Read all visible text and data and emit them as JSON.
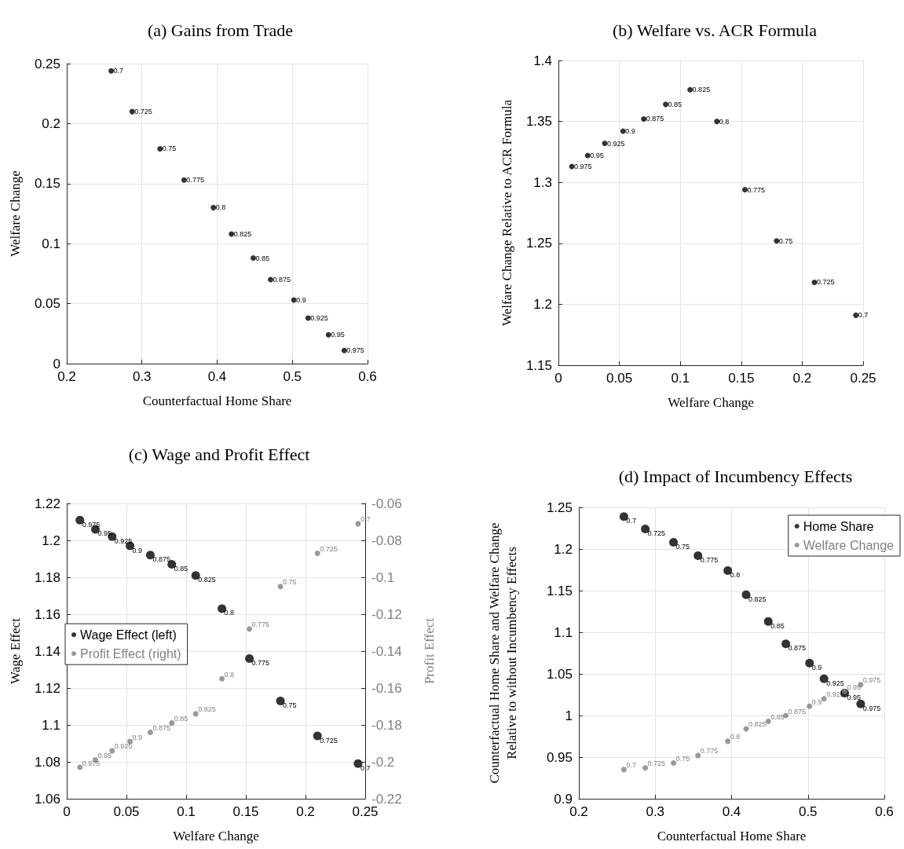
{
  "chart_data": [
    {
      "type": "scatter",
      "title": "(a) Gains from Trade",
      "xlabel": "Counterfactual Home Share",
      "ylabel": "Welfare Change",
      "xlim": [
        0.2,
        0.6
      ],
      "xticks": [
        0.2,
        0.3,
        0.4,
        0.5,
        0.6
      ],
      "ylim": [
        0,
        0.25
      ],
      "yticks": [
        0,
        0.05,
        0.1,
        0.15,
        0.2,
        0.25
      ],
      "grid": true,
      "legend": false,
      "marker": "circle",
      "x": [
        0.259,
        0.287,
        0.324,
        0.356,
        0.395,
        0.419,
        0.448,
        0.471,
        0.502,
        0.521,
        0.548,
        0.569
      ],
      "series": [
        {
          "color": "#000000",
          "values": [
            0.244,
            0.21,
            0.179,
            0.153,
            0.13,
            0.108,
            0.088,
            0.07,
            0.053,
            0.038,
            0.024,
            0.011
          ]
        }
      ],
      "annotations": [
        {
          "text": "0.7",
          "x": 0.259,
          "y": 0.244
        },
        {
          "text": "0.725",
          "x": 0.287,
          "y": 0.21
        },
        {
          "text": "0.75",
          "x": 0.324,
          "y": 0.179
        },
        {
          "text": "0.775",
          "x": 0.356,
          "y": 0.153
        },
        {
          "text": "0.8",
          "x": 0.395,
          "y": 0.13
        },
        {
          "text": "0.825",
          "x": 0.419,
          "y": 0.108
        },
        {
          "text": "0.85",
          "x": 0.448,
          "y": 0.088
        },
        {
          "text": "0.875",
          "x": 0.471,
          "y": 0.07
        },
        {
          "text": "0.9",
          "x": 0.502,
          "y": 0.053
        },
        {
          "text": "0.925",
          "x": 0.521,
          "y": 0.038
        },
        {
          "text": "0.95",
          "x": 0.548,
          "y": 0.024
        },
        {
          "text": "0.975",
          "x": 0.569,
          "y": 0.011
        }
      ]
    },
    {
      "type": "scatter",
      "title": "(b) Welfare vs. ACR Formula",
      "xlabel": "Welfare Change",
      "ylabel": "Welfare Change Relative to ACR Formula",
      "xlim": [
        0,
        0.25
      ],
      "xticks": [
        0,
        0.05,
        0.1,
        0.15,
        0.2,
        0.25
      ],
      "ylim": [
        1.15,
        1.4
      ],
      "yticks": [
        1.15,
        1.2,
        1.25,
        1.3,
        1.35,
        1.4
      ],
      "grid": true,
      "legend": false,
      "marker": "circle",
      "x": [
        0.244,
        0.21,
        0.179,
        0.153,
        0.13,
        0.108,
        0.088,
        0.07,
        0.053,
        0.038,
        0.024,
        0.011
      ],
      "series": [
        {
          "color": "#000000",
          "values": [
            1.191,
            1.218,
            1.252,
            1.294,
            1.35,
            1.376,
            1.364,
            1.352,
            1.342,
            1.332,
            1.322,
            1.313
          ]
        }
      ],
      "annotations": [
        {
          "text": "0.7",
          "x": 0.244,
          "y": 1.191
        },
        {
          "text": "0.725",
          "x": 0.21,
          "y": 1.218
        },
        {
          "text": "0.75",
          "x": 0.179,
          "y": 1.252
        },
        {
          "text": "0.775",
          "x": 0.153,
          "y": 1.294
        },
        {
          "text": "0.8",
          "x": 0.13,
          "y": 1.35
        },
        {
          "text": "0.825",
          "x": 0.108,
          "y": 1.376
        },
        {
          "text": "0.85",
          "x": 0.088,
          "y": 1.364
        },
        {
          "text": "0.875",
          "x": 0.07,
          "y": 1.352
        },
        {
          "text": "0.9",
          "x": 0.053,
          "y": 1.342
        },
        {
          "text": "0.925",
          "x": 0.038,
          "y": 1.332
        },
        {
          "text": "0.95",
          "x": 0.024,
          "y": 1.322
        },
        {
          "text": "0.975",
          "x": 0.011,
          "y": 1.313
        }
      ]
    },
    {
      "type": "scatter",
      "title": "(c) Wage and Profit Effect",
      "xlabel": "Welfare Change",
      "ylabel": "Wage Effect",
      "y2label": "Profit Effect",
      "xlim": [
        0,
        0.25
      ],
      "xticks": [
        0,
        0.05,
        0.1,
        0.15,
        0.2,
        0.25
      ],
      "ylim": [
        1.06,
        1.22
      ],
      "yticks": [
        1.06,
        1.08,
        1.1,
        1.12,
        1.14,
        1.16,
        1.18,
        1.2,
        1.22
      ],
      "y2lim": [
        -0.22,
        -0.06
      ],
      "y2ticks": [
        -0.22,
        -0.2,
        -0.18,
        -0.16,
        -0.14,
        -0.12,
        -0.1,
        -0.08,
        -0.06
      ],
      "grid": true,
      "legend": "left",
      "marker": "circle",
      "x": [
        0.244,
        0.21,
        0.179,
        0.153,
        0.13,
        0.108,
        0.088,
        0.07,
        0.053,
        0.038,
        0.024,
        0.011
      ],
      "series": [
        {
          "name": "Wage Effect (left)",
          "color": "#000000",
          "values": [
            1.079,
            1.094,
            1.113,
            1.136,
            1.163,
            1.181,
            1.187,
            1.192,
            1.197,
            1.202,
            1.206,
            1.211
          ]
        },
        {
          "name": "Profit Effect (right)",
          "color": "#808080",
          "axis": "y2",
          "values": [
            -0.071,
            -0.087,
            -0.105,
            -0.128,
            -0.155,
            -0.174,
            -0.179,
            -0.184,
            -0.189,
            -0.194,
            -0.199,
            -0.203
          ]
        }
      ],
      "annotations": [
        {
          "text": "0.7",
          "x": 0.244,
          "y": 1.079
        },
        {
          "text": "0.725",
          "x": 0.21,
          "y": 1.094
        },
        {
          "text": "0.75",
          "x": 0.179,
          "y": 1.113
        },
        {
          "text": "0.775",
          "x": 0.153,
          "y": 1.136
        },
        {
          "text": "0.8",
          "x": 0.13,
          "y": 1.163
        },
        {
          "text": "0.825",
          "x": 0.108,
          "y": 1.181
        },
        {
          "text": "0.85",
          "x": 0.088,
          "y": 1.187
        },
        {
          "text": "0.875",
          "x": 0.07,
          "y": 1.192
        },
        {
          "text": "0.9",
          "x": 0.053,
          "y": 1.197
        },
        {
          "text": "0.925",
          "x": 0.038,
          "y": 1.202
        },
        {
          "text": "0.95",
          "x": 0.024,
          "y": 1.206
        },
        {
          "text": "0.975",
          "x": 0.011,
          "y": 1.211
        },
        {
          "text": "0.7",
          "x": 0.244,
          "y": 1.209
        },
        {
          "text": "0.725",
          "x": 0.21,
          "y": 1.193
        },
        {
          "text": "0.75",
          "x": 0.179,
          "y": 1.175
        },
        {
          "text": "0.775",
          "x": 0.153,
          "y": 1.152
        },
        {
          "text": "0.8",
          "x": 0.13,
          "y": 1.125
        },
        {
          "text": "0.825",
          "x": 0.108,
          "y": 1.106
        },
        {
          "text": "0.85",
          "x": 0.088,
          "y": 1.101
        },
        {
          "text": "0.875",
          "x": 0.07,
          "y": 1.096
        },
        {
          "text": "0.9",
          "x": 0.053,
          "y": 1.091
        },
        {
          "text": "0.925",
          "x": 0.038,
          "y": 1.086
        },
        {
          "text": "0.95",
          "x": 0.024,
          "y": 1.081
        },
        {
          "text": "0.975",
          "x": 0.011,
          "y": 1.077
        }
      ]
    },
    {
      "type": "scatter",
      "title": "(d) Impact of Incumbency Effects",
      "xlabel": "Counterfactual Home Share",
      "ylabel": "Counterfactual Home Share and Welfare Change\nRelative to without Incumbency Effects",
      "xlim": [
        0.2,
        0.6
      ],
      "xticks": [
        0.2,
        0.3,
        0.4,
        0.5,
        0.6
      ],
      "ylim": [
        0.9,
        1.25
      ],
      "yticks": [
        0.9,
        0.95,
        1,
        1.05,
        1.1,
        1.15,
        1.2,
        1.25
      ],
      "grid": true,
      "legend": "top right",
      "marker": "circle",
      "x": [
        0.259,
        0.287,
        0.324,
        0.356,
        0.395,
        0.419,
        0.448,
        0.471,
        0.502,
        0.521,
        0.548,
        0.569
      ],
      "series": [
        {
          "name": "Home Share",
          "color": "#000000",
          "values": [
            1.239,
            1.224,
            1.208,
            1.192,
            1.174,
            1.145,
            1.113,
            1.086,
            1.063,
            1.044,
            1.027,
            1.014
          ]
        },
        {
          "name": "Welfare Change",
          "color": "#808080",
          "values": [
            0.935,
            0.937,
            0.943,
            0.952,
            0.969,
            0.984,
            0.993,
            1.0,
            1.011,
            1.02,
            1.029,
            1.037
          ]
        }
      ],
      "annotations": [
        {
          "text": "0.7",
          "x": 0.259,
          "y": 1.239
        },
        {
          "text": "0.725",
          "x": 0.287,
          "y": 1.224
        },
        {
          "text": "0.75",
          "x": 0.324,
          "y": 1.208
        },
        {
          "text": "0.775",
          "x": 0.356,
          "y": 1.192
        },
        {
          "text": "0.8",
          "x": 0.395,
          "y": 1.174
        },
        {
          "text": "0.825",
          "x": 0.419,
          "y": 1.145
        },
        {
          "text": "0.85",
          "x": 0.448,
          "y": 1.113
        },
        {
          "text": "0.875",
          "x": 0.471,
          "y": 1.086
        },
        {
          "text": "0.9",
          "x": 0.502,
          "y": 1.063
        },
        {
          "text": "0.925",
          "x": 0.521,
          "y": 1.044
        },
        {
          "text": "0.95",
          "x": 0.548,
          "y": 1.027
        },
        {
          "text": "0.975",
          "x": 0.569,
          "y": 1.014
        },
        {
          "text": "0.7",
          "x": 0.259,
          "y": 0.935
        },
        {
          "text": "0.725",
          "x": 0.287,
          "y": 0.937
        },
        {
          "text": "0.75",
          "x": 0.324,
          "y": 0.943
        },
        {
          "text": "0.775",
          "x": 0.356,
          "y": 0.952
        },
        {
          "text": "0.8",
          "x": 0.395,
          "y": 0.969
        },
        {
          "text": "0.825",
          "x": 0.419,
          "y": 0.984
        },
        {
          "text": "0.85",
          "x": 0.448,
          "y": 0.993
        },
        {
          "text": "0.875",
          "x": 0.471,
          "y": 1.0
        },
        {
          "text": "0.9",
          "x": 0.502,
          "y": 1.011
        },
        {
          "text": "0.925",
          "x": 0.521,
          "y": 1.02
        },
        {
          "text": "0.95",
          "x": 0.548,
          "y": 1.029
        },
        {
          "text": "0.975",
          "x": 0.569,
          "y": 1.037
        }
      ]
    }
  ]
}
